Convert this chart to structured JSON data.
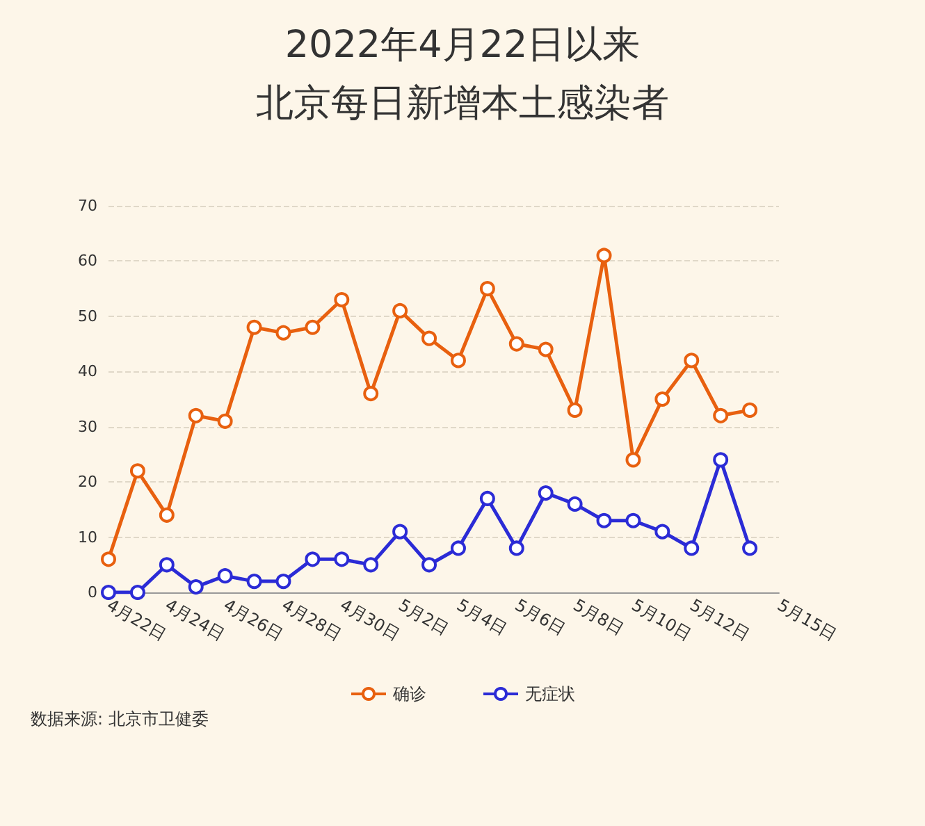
{
  "chart_data": {
    "type": "line",
    "title": "2022年4月22日以来",
    "subtitle": "北京每日新增本土感染者",
    "categories": [
      "4月22日",
      null,
      "4月24日",
      null,
      "4月26日",
      null,
      "4月28日",
      null,
      "4月30日",
      null,
      "5月2日",
      null,
      "5月4日",
      null,
      "5月6日",
      null,
      "5月8日",
      null,
      "5月10日",
      null,
      "5月12日",
      null,
      null,
      "5月15日"
    ],
    "series": [
      {
        "name": "确诊",
        "color": "#e8600f",
        "values": [
          6,
          22,
          14,
          32,
          31,
          48,
          47,
          48,
          53,
          36,
          51,
          46,
          42,
          55,
          45,
          44,
          33,
          61,
          24,
          35,
          42,
          32,
          33,
          null
        ]
      },
      {
        "name": "无症状",
        "color": "#2b2bd6",
        "values": [
          0,
          0,
          5,
          1,
          3,
          2,
          2,
          6,
          6,
          5,
          11,
          5,
          8,
          17,
          8,
          18,
          16,
          13,
          13,
          11,
          8,
          24,
          8,
          null
        ]
      }
    ],
    "ylim": [
      0,
      70
    ],
    "yticks": [
      0,
      10,
      20,
      30,
      40,
      50,
      60,
      70
    ],
    "grid": "y",
    "legend": "bottom",
    "marker": "circle",
    "line_style": "solid",
    "annotations": [
      "数据来源: 北京市卫健委"
    ]
  }
}
